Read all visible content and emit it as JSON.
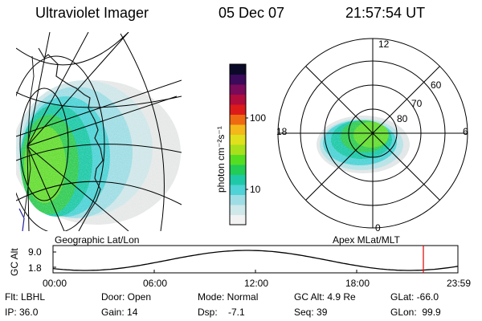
{
  "header": {
    "instrument": "Ultraviolet Imager",
    "date": "05 Dec 07",
    "time": "21:57:54 UT"
  },
  "colorbar": {
    "unit_label": "photon cm⁻²s⁻¹",
    "ticks": [
      "100",
      "10"
    ],
    "colors": [
      "#f2f2f2",
      "#cfe8ea",
      "#9fdde4",
      "#4fd3d6",
      "#1fc9a8",
      "#22cc55",
      "#55dd22",
      "#a8e01c",
      "#e0e01c",
      "#f4b81a",
      "#ee6a12",
      "#dd1a1a",
      "#b00c3c",
      "#7a0a5a",
      "#3b0a5a",
      "#0a0a28"
    ]
  },
  "panels": {
    "left_label": "Geographic Lat/Lon",
    "right_label": "Apex MLat/MLT"
  },
  "polar": {
    "mlt_labels": {
      "top": "12",
      "left": "18",
      "right": "6",
      "bottom": "0"
    },
    "lat_labels": [
      "60",
      "70",
      "80"
    ]
  },
  "altitude_plot": {
    "axis_label": "GC Alt",
    "y_ticks": [
      "9.0",
      "1.8"
    ],
    "x_ticks": [
      "00:00",
      "06:00",
      "12:00",
      "18:00",
      "23:59"
    ]
  },
  "status": {
    "filter": "Flt: LBHL",
    "ip": "IP: 36.0",
    "door": "Door: Open",
    "gain": "Gain: 14",
    "mode": "Mode: Normal",
    "dsp": "Dsp:    -7.1",
    "gc_alt": "GC Alt: 4.9 Re",
    "seq": "Seq: 39",
    "glat": "GLat: -66.0",
    "glon": "GLon:  99.9"
  },
  "accent_colors": {
    "marker": "#dd0000",
    "coast": "#2020a0"
  }
}
